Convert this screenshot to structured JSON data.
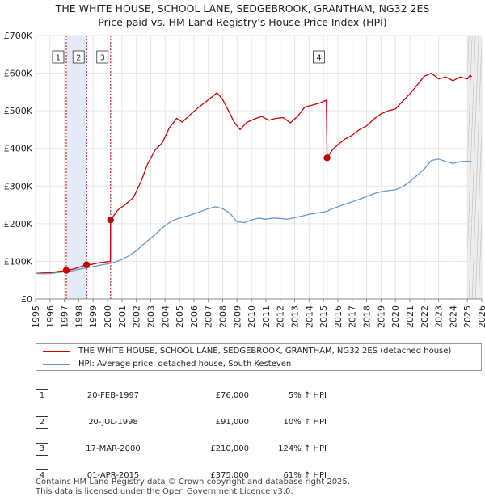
{
  "title_line1": "THE WHITE HOUSE, SCHOOL LANE, SEDGEBROOK, GRANTHAM, NG32 2ES",
  "title_line2": "Price paid vs. HM Land Registry's House Price Index (HPI)",
  "chart_data": {
    "type": "line",
    "xlim": [
      1995,
      2026
    ],
    "ylim": [
      0,
      700000
    ],
    "x_ticks": [
      1995,
      1996,
      1997,
      1998,
      1999,
      2000,
      2001,
      2002,
      2003,
      2004,
      2005,
      2006,
      2007,
      2008,
      2009,
      2010,
      2011,
      2012,
      2013,
      2014,
      2015,
      2016,
      2017,
      2018,
      2019,
      2020,
      2021,
      2022,
      2023,
      2024,
      2025,
      2026
    ],
    "x_tick_labels": [
      "1995",
      "1996",
      "1997",
      "1998",
      "1999",
      "2000",
      "2001",
      "2002",
      "2003",
      "2004",
      "2005",
      "2006",
      "2007",
      "2008",
      "2009",
      "2010",
      "2011",
      "2012",
      "2013",
      "2014",
      "2015",
      "2016",
      "2017",
      "2018",
      "2019",
      "2020",
      "2021",
      "2022",
      "2023",
      "2024",
      "2025",
      "2026"
    ],
    "y_ticks": [
      0,
      100000,
      200000,
      300000,
      400000,
      500000,
      600000,
      700000
    ],
    "y_tick_labels": [
      "£0",
      "£100K",
      "£200K",
      "£300K",
      "£400K",
      "£500K",
      "£600K",
      "£700K"
    ],
    "shaded_periods": [
      [
        1997.13,
        1998.55
      ],
      [
        2000.21,
        2000.25
      ]
    ],
    "forecast_from": 2025.0,
    "series": [
      {
        "name": "THE WHITE HOUSE, SCHOOL LANE, SEDGEBROOK, GRANTHAM, NG32 2ES (detached house)",
        "color": "#cc0000",
        "points": [
          [
            1995.0,
            72000
          ],
          [
            1995.5,
            70500
          ],
          [
            1996.0,
            70000
          ],
          [
            1996.5,
            72500
          ],
          [
            1997.13,
            76000
          ],
          [
            1997.6,
            79000
          ],
          [
            1998.0,
            84000
          ],
          [
            1998.55,
            91000
          ],
          [
            1998.9,
            92000
          ],
          [
            1999.4,
            96000
          ],
          [
            1999.8,
            98000
          ],
          [
            2000.2,
            100000
          ],
          [
            2000.21,
            210000
          ],
          [
            2000.7,
            236000
          ],
          [
            2001.2,
            250000
          ],
          [
            2001.8,
            270000
          ],
          [
            2002.3,
            310000
          ],
          [
            2002.8,
            360000
          ],
          [
            2003.3,
            395000
          ],
          [
            2003.8,
            415000
          ],
          [
            2004.3,
            455000
          ],
          [
            2004.8,
            480000
          ],
          [
            2005.2,
            470000
          ],
          [
            2005.7,
            488000
          ],
          [
            2006.2,
            505000
          ],
          [
            2006.7,
            520000
          ],
          [
            2007.2,
            535000
          ],
          [
            2007.6,
            548000
          ],
          [
            2008.0,
            530000
          ],
          [
            2008.4,
            500000
          ],
          [
            2008.8,
            470000
          ],
          [
            2009.2,
            450000
          ],
          [
            2009.7,
            470000
          ],
          [
            2010.2,
            478000
          ],
          [
            2010.7,
            485000
          ],
          [
            2011.2,
            475000
          ],
          [
            2011.7,
            480000
          ],
          [
            2012.2,
            482000
          ],
          [
            2012.7,
            468000
          ],
          [
            2013.2,
            485000
          ],
          [
            2013.7,
            510000
          ],
          [
            2014.2,
            515000
          ],
          [
            2014.7,
            520000
          ],
          [
            2015.0,
            525000
          ],
          [
            2015.2,
            528000
          ],
          [
            2015.25,
            375000
          ],
          [
            2015.6,
            395000
          ],
          [
            2016.0,
            410000
          ],
          [
            2016.5,
            425000
          ],
          [
            2017.0,
            435000
          ],
          [
            2017.5,
            450000
          ],
          [
            2018.0,
            460000
          ],
          [
            2018.5,
            478000
          ],
          [
            2019.0,
            492000
          ],
          [
            2019.5,
            500000
          ],
          [
            2020.0,
            505000
          ],
          [
            2020.5,
            525000
          ],
          [
            2021.0,
            545000
          ],
          [
            2021.5,
            568000
          ],
          [
            2022.0,
            592000
          ],
          [
            2022.5,
            600000
          ],
          [
            2023.0,
            585000
          ],
          [
            2023.5,
            590000
          ],
          [
            2024.0,
            580000
          ],
          [
            2024.5,
            590000
          ],
          [
            2025.0,
            585000
          ],
          [
            2025.2,
            595000
          ],
          [
            2025.3,
            590000
          ]
        ]
      },
      {
        "name": "HPI: Average price, detached house, South Kesteven",
        "color": "#6699cc",
        "points": [
          [
            1995.0,
            68000
          ],
          [
            1995.5,
            67000
          ],
          [
            1996.0,
            67500
          ],
          [
            1996.5,
            70000
          ],
          [
            1997.13,
            72500
          ],
          [
            1997.6,
            75000
          ],
          [
            1998.0,
            79000
          ],
          [
            1998.55,
            82500
          ],
          [
            1999.0,
            86000
          ],
          [
            1999.5,
            90000
          ],
          [
            2000.0,
            93000
          ],
          [
            2000.5,
            98000
          ],
          [
            2001.0,
            105000
          ],
          [
            2001.5,
            115000
          ],
          [
            2002.0,
            128000
          ],
          [
            2002.5,
            145000
          ],
          [
            2003.0,
            162000
          ],
          [
            2003.5,
            178000
          ],
          [
            2004.0,
            195000
          ],
          [
            2004.5,
            208000
          ],
          [
            2005.0,
            215000
          ],
          [
            2005.5,
            220000
          ],
          [
            2006.0,
            226000
          ],
          [
            2006.5,
            233000
          ],
          [
            2007.0,
            240000
          ],
          [
            2007.5,
            245000
          ],
          [
            2008.0,
            240000
          ],
          [
            2008.5,
            228000
          ],
          [
            2009.0,
            205000
          ],
          [
            2009.5,
            203000
          ],
          [
            2010.0,
            210000
          ],
          [
            2010.5,
            215000
          ],
          [
            2011.0,
            212000
          ],
          [
            2011.5,
            215000
          ],
          [
            2012.0,
            214000
          ],
          [
            2012.5,
            212000
          ],
          [
            2013.0,
            216000
          ],
          [
            2013.5,
            220000
          ],
          [
            2014.0,
            225000
          ],
          [
            2014.5,
            228000
          ],
          [
            2015.0,
            231000
          ],
          [
            2015.25,
            233000
          ],
          [
            2015.5,
            238000
          ],
          [
            2016.0,
            245000
          ],
          [
            2016.5,
            252000
          ],
          [
            2017.0,
            258000
          ],
          [
            2017.5,
            265000
          ],
          [
            2018.0,
            272000
          ],
          [
            2018.5,
            280000
          ],
          [
            2019.0,
            285000
          ],
          [
            2019.5,
            288000
          ],
          [
            2020.0,
            290000
          ],
          [
            2020.5,
            298000
          ],
          [
            2021.0,
            312000
          ],
          [
            2021.5,
            328000
          ],
          [
            2022.0,
            345000
          ],
          [
            2022.5,
            368000
          ],
          [
            2023.0,
            372000
          ],
          [
            2023.5,
            365000
          ],
          [
            2024.0,
            360000
          ],
          [
            2024.5,
            365000
          ],
          [
            2025.0,
            366000
          ],
          [
            2025.3,
            365000
          ]
        ]
      }
    ],
    "sales": [
      {
        "label": "1",
        "x": 1997.13,
        "y": 76000
      },
      {
        "label": "2",
        "x": 1998.55,
        "y": 91000
      },
      {
        "label": "3",
        "x": 2000.21,
        "y": 210000
      },
      {
        "label": "4",
        "x": 2015.25,
        "y": 375000
      }
    ]
  },
  "legend": {
    "property_label": "THE WHITE HOUSE, SCHOOL LANE, SEDGEBROOK, GRANTHAM, NG32 2ES (detached house)",
    "hpi_label": "HPI: Average price, detached house, South Kesteven"
  },
  "sales_table": [
    {
      "num": "1",
      "date": "20-FEB-1997",
      "price": "£76,000",
      "hpi": "5% ↑ HPI"
    },
    {
      "num": "2",
      "date": "20-JUL-1998",
      "price": "£91,000",
      "hpi": "10% ↑ HPI"
    },
    {
      "num": "3",
      "date": "17-MAR-2000",
      "price": "£210,000",
      "hpi": "124% ↑ HPI"
    },
    {
      "num": "4",
      "date": "01-APR-2015",
      "price": "£375,000",
      "hpi": "61% ↑ HPI"
    }
  ],
  "footer": {
    "line1": "Contains HM Land Registry data © Crown copyright and database right 2025.",
    "line2": "This data is licensed under the Open Government Licence v3.0."
  }
}
